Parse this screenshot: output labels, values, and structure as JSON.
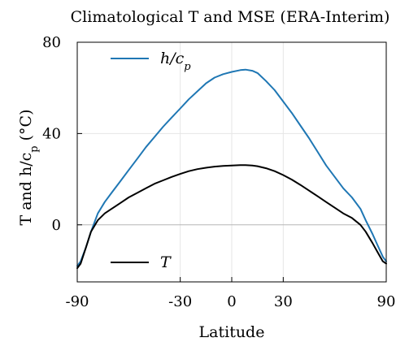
{
  "chart_data": {
    "type": "line",
    "title": "Climatological T and MSE (ERA-Interim)",
    "xlabel": "Latitude",
    "ylabel": "T and h/c_p (°C)",
    "xlim": [
      -90,
      90
    ],
    "ylim": [
      -25,
      80
    ],
    "xticks": [
      -90,
      -30,
      0,
      30,
      90
    ],
    "xtick_labels": [
      "-90",
      "-30",
      "0",
      "30",
      "90"
    ],
    "yticks": [
      0,
      40,
      80
    ],
    "ytick_labels": [
      "0",
      "40",
      "80"
    ],
    "grid": true,
    "legend_placement": "top-left and bottom-left",
    "series": [
      {
        "name": "h/c_p",
        "color": "#1f77b4",
        "x": [
          -90,
          -88,
          -85,
          -82,
          -78,
          -74,
          -70,
          -65,
          -60,
          -55,
          -50,
          -45,
          -40,
          -35,
          -30,
          -25,
          -20,
          -15,
          -10,
          -5,
          0,
          5,
          8,
          12,
          15,
          20,
          25,
          30,
          35,
          40,
          45,
          50,
          55,
          60,
          65,
          70,
          75,
          78,
          82,
          85,
          88,
          90
        ],
        "y": [
          -18,
          -16,
          -10,
          -3,
          5,
          10,
          14,
          19,
          24,
          29,
          34,
          38.5,
          43,
          47,
          51,
          55,
          58.5,
          62,
          64.5,
          66,
          67,
          67.8,
          68,
          67.5,
          66.5,
          63,
          59,
          54,
          49,
          43.5,
          38,
          32,
          26,
          21,
          16,
          12,
          7,
          2,
          -4,
          -9,
          -14,
          -16
        ]
      },
      {
        "name": "T",
        "color": "#000000",
        "x": [
          -90,
          -88,
          -85,
          -82,
          -78,
          -74,
          -70,
          -65,
          -60,
          -55,
          -50,
          -45,
          -40,
          -35,
          -30,
          -25,
          -20,
          -15,
          -10,
          -5,
          0,
          5,
          8,
          12,
          15,
          20,
          25,
          30,
          35,
          40,
          45,
          50,
          55,
          60,
          65,
          70,
          75,
          78,
          82,
          85,
          88,
          90
        ],
        "y": [
          -19,
          -17,
          -10,
          -3,
          2,
          5,
          7,
          9.5,
          12,
          14,
          16,
          18,
          19.5,
          21,
          22.3,
          23.5,
          24.4,
          25,
          25.5,
          25.8,
          26,
          26.2,
          26.2,
          26,
          25.7,
          24.8,
          23.5,
          21.8,
          19.8,
          17.5,
          15,
          12.5,
          10,
          7.5,
          5,
          3,
          0,
          -3,
          -8,
          -12,
          -16,
          -17
        ]
      }
    ],
    "legend": [
      {
        "series": "h/c_p",
        "label": "h/c_p"
      },
      {
        "series": "T",
        "label": "T"
      }
    ]
  }
}
